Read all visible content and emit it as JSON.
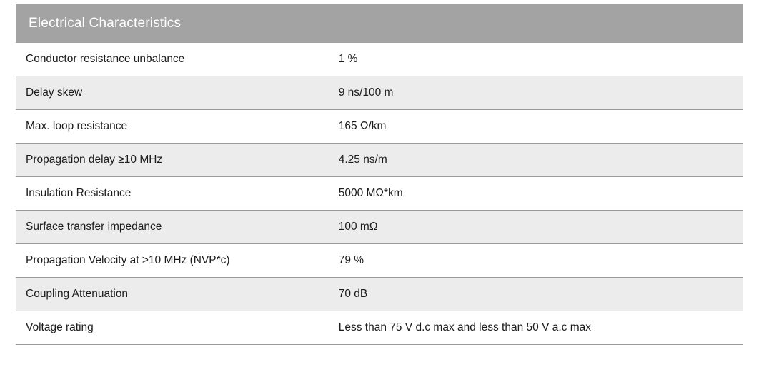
{
  "panel": {
    "title": "Electrical Characteristics",
    "header_bg": "#a3a3a3",
    "header_fg": "#ffffff",
    "header_fontsize": 19,
    "row_odd_bg": "#ffffff",
    "row_even_bg": "#ececec",
    "row_border_color": "#9a9a9a",
    "cell_fontsize": 15.5,
    "cell_fg": "#1b1b1b",
    "label_col_width_pct": 43,
    "value_col_width_pct": 57,
    "rows": [
      {
        "label": "Conductor resistance unbalance",
        "value": "1 %"
      },
      {
        "label": "Delay skew",
        "value": "9 ns/100 m"
      },
      {
        "label": "Max. loop resistance",
        "value": "165 Ω/km"
      },
      {
        "label": "Propagation delay ≥10 MHz",
        "value": "4.25 ns/m"
      },
      {
        "label": "Insulation Resistance",
        "value": "5000 MΩ*km"
      },
      {
        "label": "Surface transfer impedance",
        "value": "100 mΩ"
      },
      {
        "label": "Propagation Velocity at >10 MHz (NVP*c)",
        "value": "79 %"
      },
      {
        "label": "Coupling Attenuation",
        "value": "70 dB"
      },
      {
        "label": "Voltage rating",
        "value": "Less than 75 V d.c max and less than 50 V a.c max"
      }
    ]
  }
}
